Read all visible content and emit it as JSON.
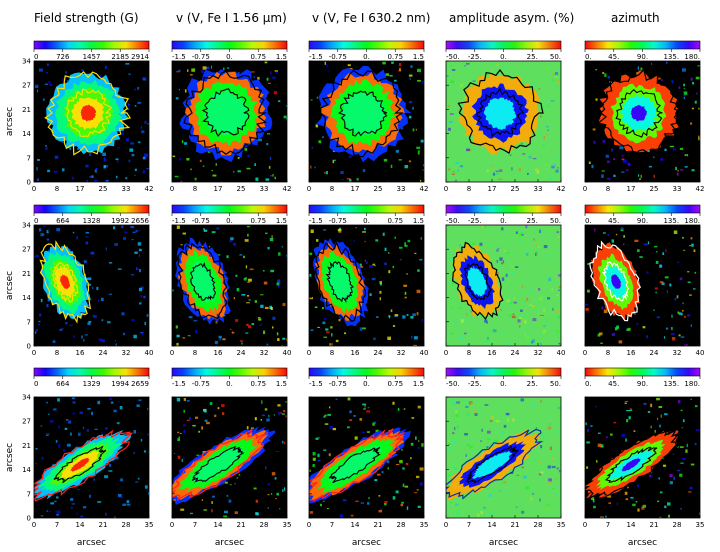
{
  "chart_data": {
    "type": "heatmap",
    "column_titles": [
      "Field strength (G)",
      "v (V, Fe I 1.56 μm)",
      "v (V, Fe I 630.2 nm)",
      "amplitude asym. (%)",
      "azimuth"
    ],
    "ylabel": "arcsec",
    "xlabel": "arcsec",
    "rows": [
      {
        "y_ticks": [
          "0",
          "7",
          "14",
          "21",
          "27",
          "34"
        ],
        "x_ticks": [
          "0",
          "8",
          "17",
          "25",
          "33",
          "42"
        ],
        "colorbar_ticks": [
          [
            "0",
            "726",
            "1457",
            "2185",
            "2914"
          ],
          [
            "-1.5",
            "-0.75",
            "0.",
            "0.75",
            "1.5"
          ],
          [
            "-1.5",
            "-0.75",
            "0.",
            "0.75",
            "1.5"
          ],
          [
            "-50.",
            "-25.",
            "0.",
            "25.",
            "50."
          ],
          [
            "0.",
            "45.",
            "90.",
            "135.",
            "180."
          ]
        ]
      },
      {
        "y_ticks": [
          "0",
          "7",
          "14",
          "21",
          "27",
          "34"
        ],
        "x_ticks": [
          "0",
          "8",
          "16",
          "24",
          "32",
          "40"
        ],
        "colorbar_ticks": [
          [
            "0",
            "664",
            "1328",
            "1992",
            "2656"
          ],
          [
            "-1.5",
            "-0.75",
            "0.",
            "0.75",
            "1.5"
          ],
          [
            "-1.5",
            "-0.75",
            "0.",
            "0.75",
            "1.5"
          ],
          [
            "-50.",
            "-25.",
            "0.",
            "25.",
            "50."
          ],
          [
            "0.",
            "45.",
            "90.",
            "135.",
            "180."
          ]
        ]
      },
      {
        "y_ticks": [
          "0",
          "7",
          "14",
          "21",
          "27",
          "34"
        ],
        "x_ticks": [
          "0",
          "7",
          "14",
          "21",
          "28",
          "35"
        ],
        "colorbar_ticks": [
          [
            "0",
            "664",
            "1329",
            "1994",
            "2659"
          ],
          [
            "-1.5",
            "-0.75",
            "0.",
            "0.75",
            "1.5"
          ],
          [
            "-1.5",
            "-0.75",
            "0.",
            "0.75",
            "1.5"
          ],
          [
            "-50.",
            "-25.",
            "0.",
            "25.",
            "50."
          ],
          [
            "0.",
            "45.",
            "90.",
            "135.",
            "180."
          ]
        ]
      }
    ],
    "colormaps": [
      "rainbow",
      "velocity",
      "velocity",
      "asymmetry",
      "hue"
    ],
    "background_colors": [
      "#000000",
      "#000000",
      "#000000",
      "#5ee05e",
      "#000000"
    ],
    "contour_colors": [
      [
        "#ffe000",
        "#000000",
        "#000000",
        "#000000",
        "#000000"
      ],
      [
        "#ffe000",
        "#000000",
        "#000000",
        "#000000",
        "#ffffff"
      ],
      [
        "#ff2020",
        "#ff2020",
        "#ff2020",
        "#1030a0",
        "#000000"
      ]
    ]
  }
}
